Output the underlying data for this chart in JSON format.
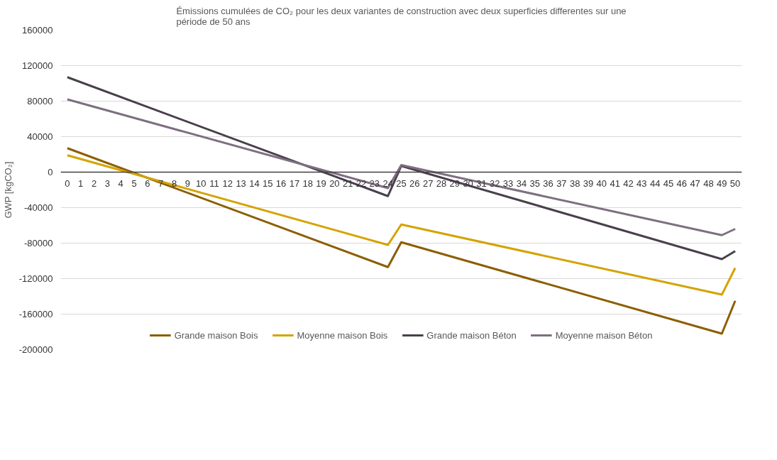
{
  "chart_data": {
    "type": "line",
    "title": "Émissions cumulées de CO₂ pour les deux variantes de construction avec deux superficies differentes sur une période de 50 ans",
    "ylabel": "GWP [kgCO₂]",
    "xlim": [
      -0.5,
      50.5
    ],
    "xticks": [
      0,
      1,
      2,
      3,
      4,
      5,
      6,
      7,
      8,
      9,
      10,
      11,
      12,
      13,
      14,
      15,
      16,
      17,
      18,
      19,
      20,
      21,
      22,
      23,
      24,
      25,
      26,
      27,
      28,
      29,
      30,
      31,
      32,
      33,
      34,
      35,
      36,
      37,
      38,
      39,
      40,
      41,
      42,
      43,
      44,
      45,
      46,
      47,
      48,
      49,
      50
    ],
    "ylim": [
      -200000,
      160000
    ],
    "yticks": [
      -200000,
      -160000,
      -120000,
      -80000,
      -40000,
      0,
      40000,
      80000,
      120000,
      160000
    ],
    "grid": "y",
    "legend": "bottom",
    "line_style": "solid",
    "marker": "none",
    "series": [
      {
        "name": "Grande maison Bois",
        "color": "#8c5e00",
        "x": [
          0,
          24,
          25,
          49,
          50
        ],
        "values": [
          27000,
          -107000,
          -79000,
          -182000,
          -145000
        ]
      },
      {
        "name": "Moyenne maison Bois",
        "color": "#d4a300",
        "x": [
          0,
          24,
          25,
          49,
          50
        ],
        "values": [
          19000,
          -82000,
          -59000,
          -138000,
          -108000
        ]
      },
      {
        "name": "Grande maison Béton",
        "color": "#4a3f4d",
        "x": [
          0,
          24,
          25,
          49,
          50
        ],
        "values": [
          107000,
          -27000,
          7000,
          -98000,
          -89000
        ]
      },
      {
        "name": "Moyenne maison Béton",
        "color": "#7f6e82",
        "x": [
          0,
          24,
          25,
          49,
          50
        ],
        "values": [
          82000,
          -18000,
          8000,
          -71000,
          -64000
        ]
      }
    ]
  }
}
